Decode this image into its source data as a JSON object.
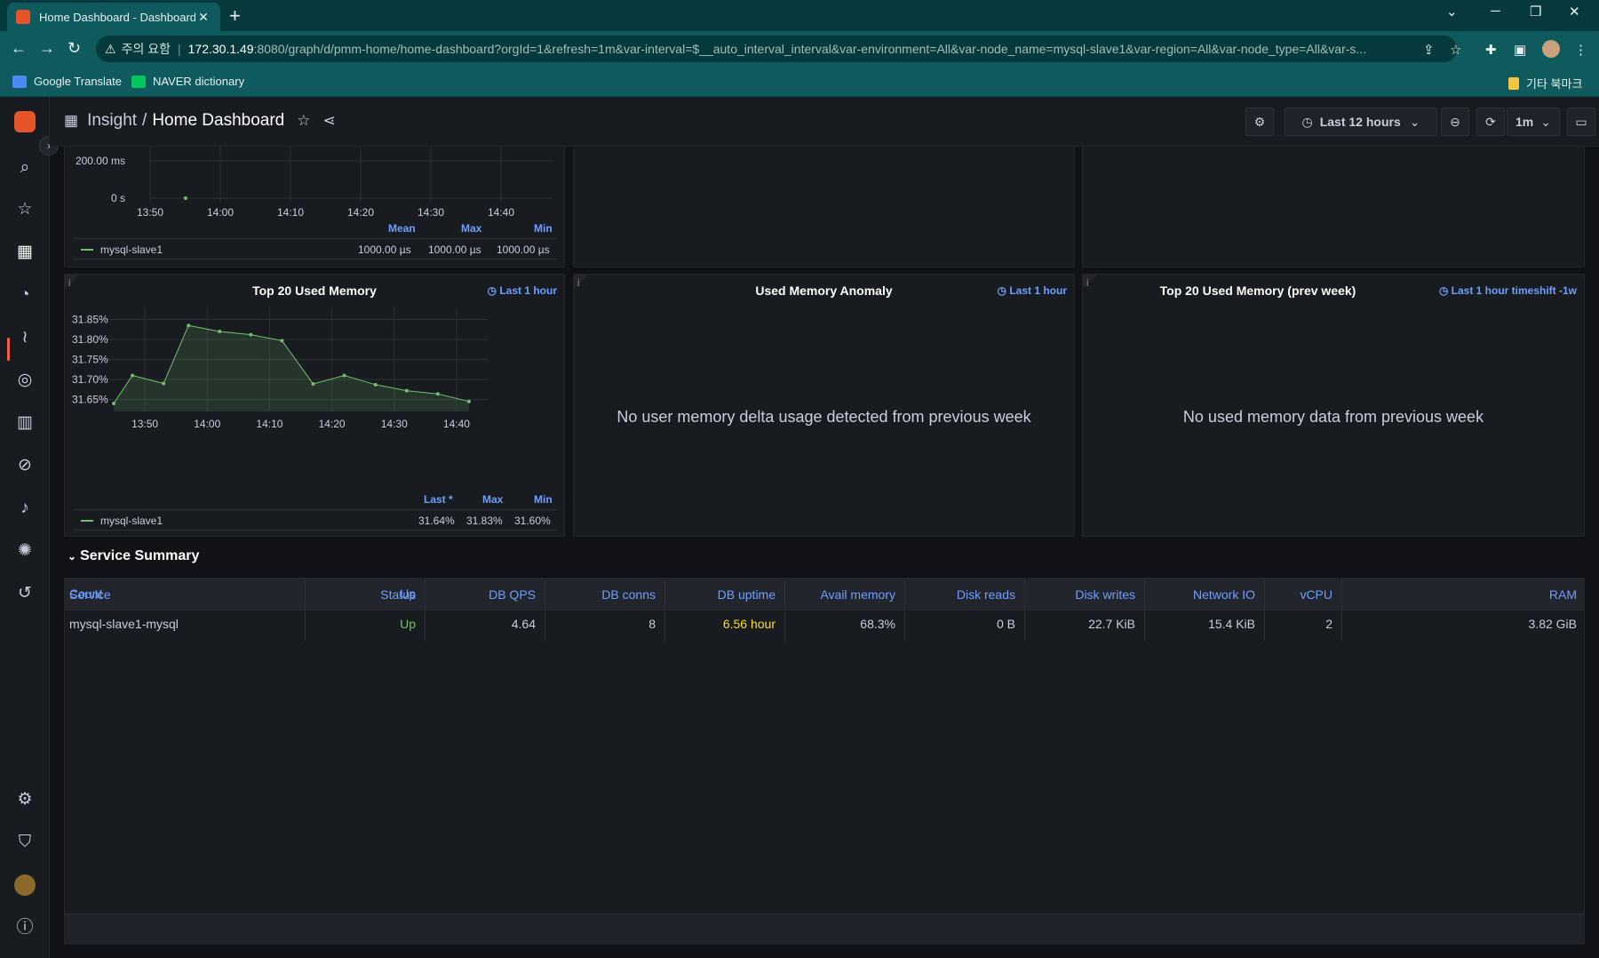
{
  "browser": {
    "tab_title": "Home Dashboard - Dashboards",
    "tab_close": "✕",
    "new_tab": "+",
    "security_label": "주의 요함",
    "url_host": "172.30.1.49",
    "url_path": ":8080/graph/d/pmm-home/home-dashboard?orgId=1&refresh=1m&var-interval=$__auto_interval_interval&var-environment=All&var-node_name=mysql-slave1&var-region=All&var-node_type=All&var-s...",
    "bookmarks": [
      "Google Translate",
      "NAVER dictionary"
    ],
    "other_bookmarks": "기타 북마크"
  },
  "header": {
    "breadcrumb_parent": "Insight",
    "breadcrumb_sep": "/",
    "breadcrumb_title": "Home Dashboard",
    "time_range": "Last 12 hours",
    "refresh_interval": "1m"
  },
  "top_left_panel": {
    "y_ticks": [
      "200.00 ms",
      "0 s"
    ],
    "x_ticks": [
      "13:50",
      "14:00",
      "14:10",
      "14:20",
      "14:30",
      "14:40"
    ],
    "legend_headers": [
      "Mean",
      "Max",
      "Min"
    ],
    "legend_series": "mysql-slave1",
    "legend_values": [
      "1000.00 µs",
      "1000.00 µs",
      "1000.00 µs"
    ]
  },
  "memory_panel": {
    "info": "i",
    "title": "Top 20 Used Memory",
    "time_badge": "Last 1 hour",
    "legend_headers": [
      "Last *",
      "Max",
      "Min"
    ],
    "legend_series": "mysql-slave1",
    "legend_values": [
      "31.64%",
      "31.83%",
      "31.60%"
    ]
  },
  "chart_data": {
    "type": "area",
    "title": "Top 20 Used Memory",
    "x": [
      "13:45",
      "13:48",
      "13:53",
      "13:57",
      "14:02",
      "14:07",
      "14:12",
      "14:17",
      "14:22",
      "14:27",
      "14:32",
      "14:37",
      "14:42"
    ],
    "series": [
      {
        "name": "mysql-slave1",
        "values": [
          31.64,
          31.71,
          31.69,
          31.835,
          31.82,
          31.812,
          31.797,
          31.689,
          31.71,
          31.687,
          31.672,
          31.664,
          31.645
        ]
      }
    ],
    "y_ticks": [
      "31.65%",
      "31.70%",
      "31.75%",
      "31.80%",
      "31.85%"
    ],
    "x_ticks": [
      "13:50",
      "14:00",
      "14:10",
      "14:20",
      "14:30",
      "14:40"
    ],
    "ylim": [
      31.62,
      31.86
    ],
    "grid": true,
    "color": "#73bf69"
  },
  "anomaly_panel": {
    "info": "i",
    "title": "Used Memory Anomaly",
    "time_badge": "Last 1 hour",
    "message": "No user memory delta usage detected from previous week"
  },
  "prev_week_panel": {
    "info": "i",
    "title": "Top 20 Used Memory (prev week)",
    "time_badge": "Last 1 hour timeshift -1w",
    "message": "No used memory data from previous week"
  },
  "service_summary": {
    "title": "Service Summary",
    "columns": [
      "Service",
      "Status",
      "DB QPS",
      "DB conns",
      "DB uptime",
      "Avail memory",
      "Disk reads",
      "Disk writes",
      "Network IO",
      "vCPU",
      "RAM"
    ],
    "row": [
      "mysql-slave1-mysql",
      "Up",
      "4.64",
      "8",
      "6.56 hour",
      "68.3%",
      "0 B",
      "22.7 KiB",
      "15.4 KiB",
      "2",
      "3.82 GiB"
    ],
    "footer": [
      "Count",
      "Up"
    ],
    "colors": {
      "status_up": "#73bf69",
      "uptime": "#fade2a"
    }
  }
}
